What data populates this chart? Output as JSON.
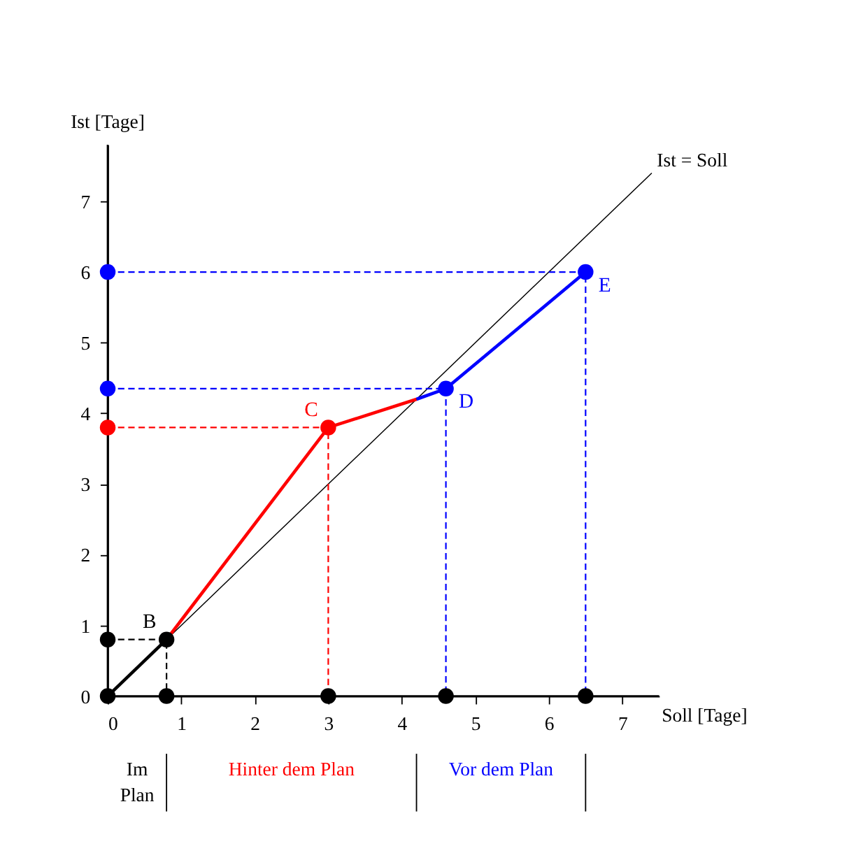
{
  "chart_data": {
    "type": "line",
    "xlabel": "Soll [Tage]",
    "ylabel": "Ist [Tage]",
    "xlim": [
      0,
      7.5
    ],
    "ylim": [
      0,
      7.8
    ],
    "xticks": [
      0,
      1,
      2,
      3,
      4,
      5,
      6,
      7
    ],
    "yticks": [
      0,
      1,
      2,
      3,
      4,
      5,
      6,
      7
    ],
    "grid": false,
    "series": [
      {
        "name": "Ist = Soll",
        "color": "#000000",
        "x": [
          0,
          7.4
        ],
        "values": [
          0,
          7.4
        ],
        "marker": "none",
        "line_style": "solid"
      },
      {
        "color": "#000000",
        "x": [
          0,
          0.8
        ],
        "values": [
          0,
          0.8
        ],
        "marker": "none",
        "line_style": "solid"
      },
      {
        "color": "#ff0000",
        "x": [
          0.8,
          3,
          4.2
        ],
        "values": [
          0.8,
          3.8,
          4.2
        ],
        "marker": "none",
        "line_style": "solid"
      },
      {
        "color": "#0000ff",
        "x": [
          4.2,
          4.6,
          6.5
        ],
        "values": [
          4.2,
          4.35,
          6
        ],
        "marker": "none",
        "line_style": "solid"
      },
      {
        "color": "#000000",
        "x": [
          0,
          0.8,
          0.8
        ],
        "values": [
          0.8,
          0.8,
          0
        ],
        "marker": "none",
        "line_style": "dashed"
      },
      {
        "color": "#ff0000",
        "x": [
          0,
          3,
          3
        ],
        "values": [
          3.8,
          3.8,
          0
        ],
        "marker": "none",
        "line_style": "dashed"
      },
      {
        "color": "#0000ff",
        "x": [
          0,
          4.6,
          4.6
        ],
        "values": [
          4.35,
          4.35,
          0
        ],
        "marker": "none",
        "line_style": "dashed"
      },
      {
        "color": "#0000ff",
        "x": [
          0,
          6.5,
          6.5
        ],
        "values": [
          6,
          6,
          0
        ],
        "marker": "none",
        "line_style": "dashed"
      },
      {
        "type": "scatter",
        "color": "#000000",
        "x": [
          0,
          0.8,
          0,
          0.8,
          3,
          4.6,
          6.5
        ],
        "values": [
          0,
          0.8,
          0.8,
          0,
          0,
          0,
          0
        ],
        "marker": "circle"
      },
      {
        "type": "scatter",
        "color": "#ff0000",
        "x": [
          0,
          3
        ],
        "values": [
          3.8,
          3.8
        ],
        "marker": "circle"
      },
      {
        "type": "scatter",
        "color": "#0000ff",
        "x": [
          0,
          4.6,
          0,
          6.5
        ],
        "values": [
          4.35,
          4.35,
          6,
          6
        ],
        "marker": "circle"
      }
    ],
    "annotations": [
      {
        "text": "B",
        "x": 0.8,
        "y": 0.8
      },
      {
        "text": "C",
        "x": 3,
        "y": 3.8
      },
      {
        "text": "D",
        "x": 4.6,
        "y": 4.35
      },
      {
        "text": "E",
        "x": 6.5,
        "y": 6
      },
      "Im Plan",
      "Hinter dem Plan",
      "Vor dem Plan"
    ]
  }
}
